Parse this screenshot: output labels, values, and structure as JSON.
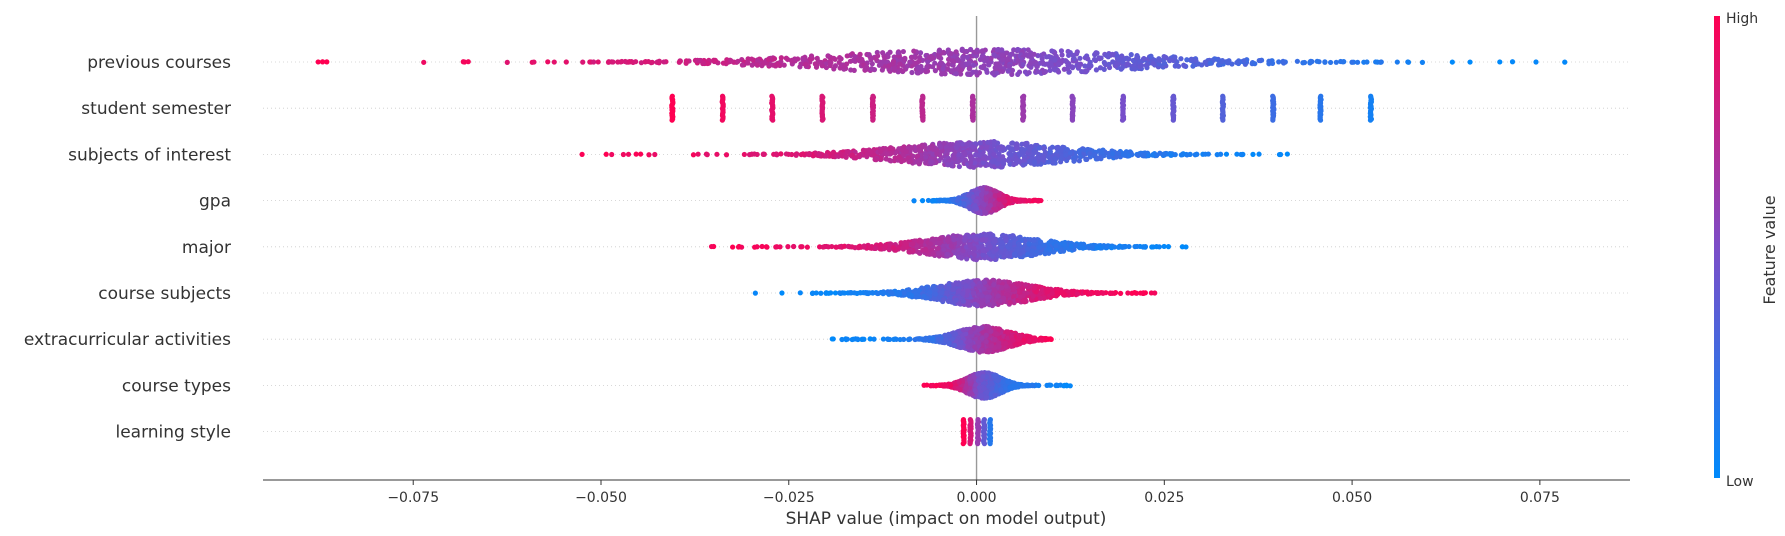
{
  "chart_data": {
    "type": "scatter",
    "subtype": "shap-beeswarm",
    "xlabel": "SHAP value (impact on model output)",
    "xlim": [
      -0.095,
      0.087
    ],
    "xticks": [
      {
        "value": -0.075,
        "label": "−0.075"
      },
      {
        "value": -0.05,
        "label": "−0.050"
      },
      {
        "value": -0.025,
        "label": "−0.025"
      },
      {
        "value": 0.0,
        "label": "0.000"
      },
      {
        "value": 0.025,
        "label": "0.025"
      },
      {
        "value": 0.05,
        "label": "0.050"
      },
      {
        "value": 0.075,
        "label": "0.075"
      }
    ],
    "colorbar": {
      "title": "Feature value",
      "high_label": "High",
      "low_label": "Low",
      "low_color": "#008afb",
      "high_color": "#ff0052"
    },
    "features": [
      {
        "name": "previous courses",
        "low_side": "positive",
        "distribution": "spread",
        "min": -0.088,
        "max": 0.079,
        "samples": [
          {
            "x": -0.087,
            "v": 1.0
          },
          {
            "x": -0.084,
            "v": 1.0
          },
          {
            "x": -0.076,
            "v": 0.98
          },
          {
            "x": -0.074,
            "v": 0.97
          },
          {
            "x": -0.07,
            "v": 0.95
          },
          {
            "x": -0.065,
            "v": 0.93
          },
          {
            "x": -0.06,
            "v": 0.9
          },
          {
            "x": -0.05,
            "v": 0.85
          },
          {
            "x": -0.04,
            "v": 0.8
          },
          {
            "x": -0.025,
            "v": 0.72
          },
          {
            "x": -0.01,
            "v": 0.64
          },
          {
            "x": 0.006,
            "v": 0.55
          },
          {
            "x": 0.02,
            "v": 0.4
          },
          {
            "x": 0.035,
            "v": 0.28
          },
          {
            "x": 0.05,
            "v": 0.15
          },
          {
            "x": 0.058,
            "v": 0.08
          },
          {
            "x": 0.065,
            "v": 0.03
          },
          {
            "x": 0.07,
            "v": 0.02
          },
          {
            "x": 0.075,
            "v": 0.0
          },
          {
            "x": 0.079,
            "v": 0.0
          }
        ]
      },
      {
        "name": "student semester",
        "low_side": "positive",
        "distribution": "discrete",
        "levels": [
          {
            "x": -0.0405,
            "v": 1.0
          },
          {
            "x": -0.0338,
            "v": 0.95
          },
          {
            "x": -0.0272,
            "v": 0.9
          },
          {
            "x": -0.0205,
            "v": 0.85
          },
          {
            "x": -0.0138,
            "v": 0.8
          },
          {
            "x": -0.0072,
            "v": 0.74
          },
          {
            "x": -0.0005,
            "v": 0.68
          },
          {
            "x": 0.0062,
            "v": 0.62
          },
          {
            "x": 0.0128,
            "v": 0.55
          },
          {
            "x": 0.0195,
            "v": 0.48
          },
          {
            "x": 0.0262,
            "v": 0.41
          },
          {
            "x": 0.0328,
            "v": 0.33
          },
          {
            "x": 0.0395,
            "v": 0.24
          },
          {
            "x": 0.0458,
            "v": 0.16
          },
          {
            "x": 0.0525,
            "v": 0.08
          }
        ]
      },
      {
        "name": "subjects of interest",
        "low_side": "positive",
        "distribution": "spread",
        "min": -0.053,
        "max": 0.042,
        "samples": [
          {
            "x": -0.052,
            "v": 1.0
          },
          {
            "x": -0.043,
            "v": 0.95
          },
          {
            "x": -0.036,
            "v": 0.92
          },
          {
            "x": -0.033,
            "v": 0.9
          },
          {
            "x": -0.022,
            "v": 0.85
          },
          {
            "x": -0.01,
            "v": 0.7
          },
          {
            "x": 0.0,
            "v": 0.5
          },
          {
            "x": 0.01,
            "v": 0.35
          },
          {
            "x": 0.02,
            "v": 0.2
          },
          {
            "x": 0.028,
            "v": 0.1
          },
          {
            "x": 0.035,
            "v": 0.05
          },
          {
            "x": 0.042,
            "v": 0.0
          }
        ]
      },
      {
        "name": "gpa",
        "low_side": "negative",
        "distribution": "spread",
        "min": -0.0085,
        "max": 0.0088,
        "samples": [
          {
            "x": -0.0085,
            "v": 0.0
          },
          {
            "x": -0.004,
            "v": 0.1
          },
          {
            "x": 0.0,
            "v": 0.5
          },
          {
            "x": 0.004,
            "v": 0.85
          },
          {
            "x": 0.0088,
            "v": 1.0
          }
        ]
      },
      {
        "name": "major",
        "low_side": "positive",
        "distribution": "spread",
        "min": -0.037,
        "max": 0.028,
        "samples": [
          {
            "x": -0.037,
            "v": 1.0
          },
          {
            "x": -0.028,
            "v": 0.95
          },
          {
            "x": -0.02,
            "v": 0.9
          },
          {
            "x": -0.01,
            "v": 0.8
          },
          {
            "x": 0.0,
            "v": 0.5
          },
          {
            "x": 0.01,
            "v": 0.2
          },
          {
            "x": 0.02,
            "v": 0.08
          },
          {
            "x": 0.028,
            "v": 0.0
          }
        ]
      },
      {
        "name": "course subjects",
        "low_side": "negative",
        "distribution": "spread",
        "min": -0.03,
        "max": 0.024,
        "samples": [
          {
            "x": -0.03,
            "v": 0.0
          },
          {
            "x": -0.016,
            "v": 0.05
          },
          {
            "x": -0.008,
            "v": 0.2
          },
          {
            "x": 0.0,
            "v": 0.55
          },
          {
            "x": 0.008,
            "v": 0.85
          },
          {
            "x": 0.016,
            "v": 0.95
          },
          {
            "x": 0.024,
            "v": 1.0
          }
        ]
      },
      {
        "name": "extracurricular activities",
        "low_side": "negative",
        "distribution": "spread",
        "min": -0.02,
        "max": 0.01,
        "samples": [
          {
            "x": -0.02,
            "v": 0.0
          },
          {
            "x": -0.014,
            "v": 0.05
          },
          {
            "x": -0.006,
            "v": 0.2
          },
          {
            "x": 0.0,
            "v": 0.6
          },
          {
            "x": 0.005,
            "v": 0.85
          },
          {
            "x": 0.01,
            "v": 1.0
          }
        ]
      },
      {
        "name": "course types",
        "low_side": "positive",
        "distribution": "spread",
        "min": -0.007,
        "max": 0.0125,
        "samples": [
          {
            "x": -0.007,
            "v": 1.0
          },
          {
            "x": -0.003,
            "v": 0.9
          },
          {
            "x": 0.0,
            "v": 0.5
          },
          {
            "x": 0.004,
            "v": 0.2
          },
          {
            "x": 0.0125,
            "v": 0.0
          }
        ]
      },
      {
        "name": "learning style",
        "low_side": "positive",
        "distribution": "discrete",
        "levels": [
          {
            "x": -0.0017,
            "v": 1.0
          },
          {
            "x": -0.0008,
            "v": 0.85
          },
          {
            "x": 0.0002,
            "v": 0.6
          },
          {
            "x": 0.001,
            "v": 0.4
          },
          {
            "x": 0.0018,
            "v": 0.15
          }
        ]
      }
    ]
  }
}
